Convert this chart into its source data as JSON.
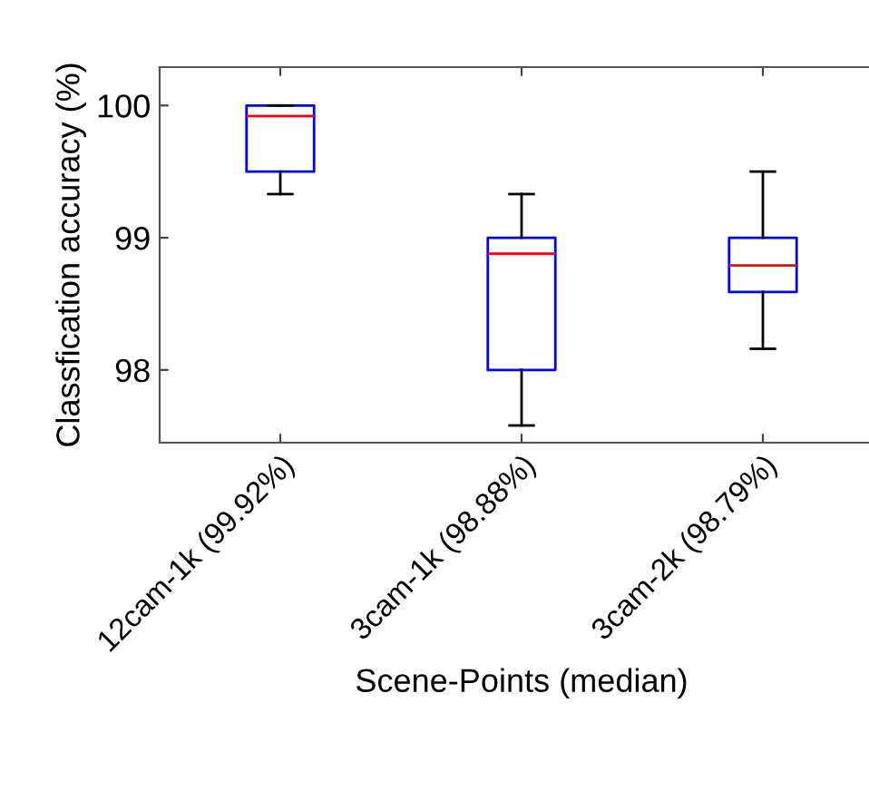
{
  "chart_data": {
    "type": "box",
    "xlabel": "Scene-Points (median)",
    "ylabel": "Classfication accuracy (%)",
    "categories": [
      "12cam-1k (99.92%)",
      "3cam-1k (98.88%)",
      "3cam-2k (98.79%)"
    ],
    "boxes": [
      {
        "low": 99.33,
        "q1": 99.5,
        "median": 99.92,
        "q3": 100,
        "high": 100
      },
      {
        "low": 97.58,
        "q1": 98,
        "median": 98.88,
        "q3": 99,
        "high": 99.33
      },
      {
        "low": 98.16,
        "q1": 98.59,
        "median": 98.79,
        "q3": 99,
        "high": 99.5
      }
    ],
    "color": "#0000ff",
    "ylim": [
      97.45,
      100.29
    ],
    "yticks": [
      98,
      99,
      100
    ],
    "grid": false
  }
}
